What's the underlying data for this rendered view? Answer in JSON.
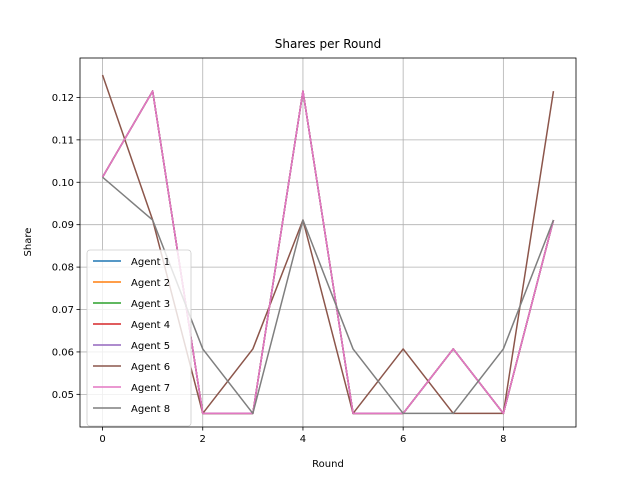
{
  "chart_data": {
    "type": "line",
    "title": "Shares per Round",
    "xlabel": "Round",
    "ylabel": "Share",
    "x": [
      0,
      1,
      2,
      3,
      4,
      5,
      6,
      7,
      8,
      9
    ],
    "xlim": [
      -0.45,
      9.45
    ],
    "ylim": [
      0.0423,
      0.1293
    ],
    "xticks": [
      0,
      2,
      4,
      6,
      8
    ],
    "yticks": [
      0.05,
      0.06,
      0.07,
      0.08,
      0.09,
      0.1,
      0.11,
      0.12
    ],
    "ytick_labels": [
      "0.05",
      "0.06",
      "0.07",
      "0.08",
      "0.09",
      "0.10",
      "0.11",
      "0.12"
    ],
    "grid": true,
    "legend_position": "lower-left",
    "series": [
      {
        "name": "Agent 1",
        "color": "#1f77b4",
        "values": [
          0.1012,
          0.1215,
          0.0455,
          0.0455,
          0.1215,
          0.0455,
          0.0455,
          0.0607,
          0.0455,
          0.0911
        ]
      },
      {
        "name": "Agent 2",
        "color": "#ff7f0e",
        "values": [
          0.1012,
          0.1215,
          0.0455,
          0.0455,
          0.1215,
          0.0455,
          0.0455,
          0.0607,
          0.0455,
          0.0911
        ]
      },
      {
        "name": "Agent 3",
        "color": "#2ca02c",
        "values": [
          0.1012,
          0.1215,
          0.0455,
          0.0455,
          0.1215,
          0.0455,
          0.0455,
          0.0607,
          0.0455,
          0.0911
        ]
      },
      {
        "name": "Agent 4",
        "color": "#d62728",
        "values": [
          0.1012,
          0.1215,
          0.0455,
          0.0455,
          0.1215,
          0.0455,
          0.0455,
          0.0607,
          0.0455,
          0.0911
        ]
      },
      {
        "name": "Agent 5",
        "color": "#9467bd",
        "values": [
          0.1012,
          0.1215,
          0.0455,
          0.0455,
          0.1215,
          0.0455,
          0.0455,
          0.0607,
          0.0455,
          0.0911
        ]
      },
      {
        "name": "Agent 6",
        "color": "#8c564b",
        "values": [
          0.1253,
          0.0911,
          0.0455,
          0.0607,
          0.0911,
          0.0455,
          0.0607,
          0.0455,
          0.0455,
          0.1215
        ]
      },
      {
        "name": "Agent 7",
        "color": "#e377c2",
        "values": [
          0.1012,
          0.1215,
          0.0455,
          0.0455,
          0.1215,
          0.0455,
          0.0455,
          0.0607,
          0.0455,
          0.0911
        ]
      },
      {
        "name": "Agent 8",
        "color": "#7f7f7f",
        "values": [
          0.1012,
          0.0911,
          0.0607,
          0.0455,
          0.0911,
          0.0607,
          0.0455,
          0.0455,
          0.0607,
          0.0911
        ]
      }
    ]
  }
}
